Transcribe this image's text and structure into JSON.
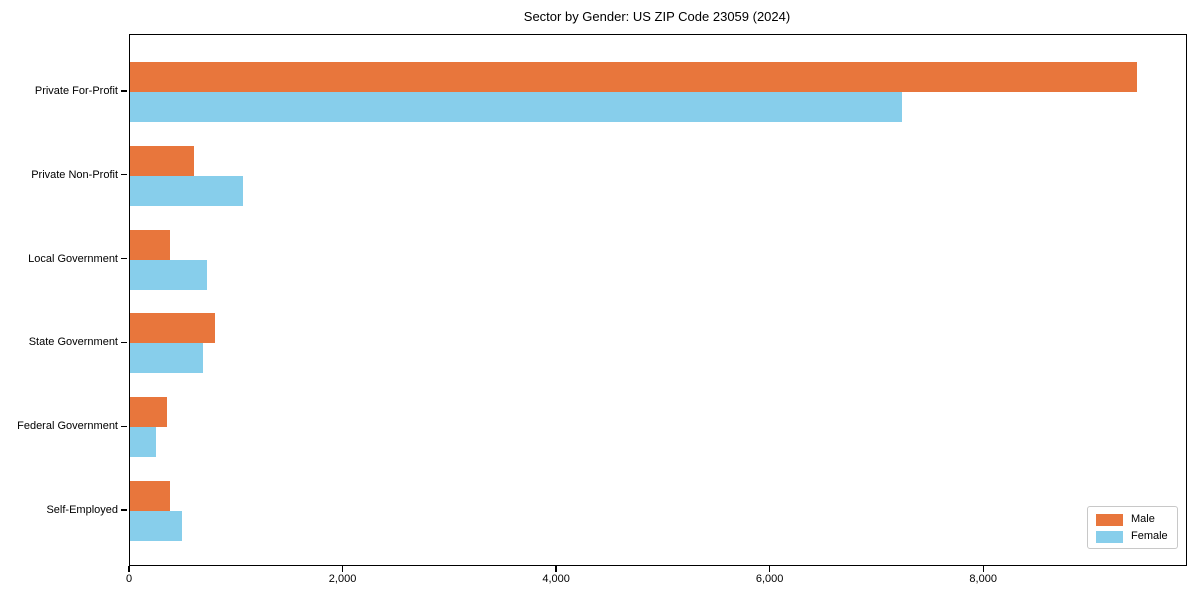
{
  "figure": {
    "title": "Sector by Gender: US ZIP Code 23059 (2024)",
    "background_color": "#ffffff",
    "spine_color": "#000000",
    "tick_color": "#000000",
    "legend_border_color": "#c8c8c8"
  },
  "chart_data": {
    "type": "bar",
    "orientation": "horizontal",
    "title": "Sector by Gender: US ZIP Code 23059 (2024)",
    "categories": [
      "Private For-Profit",
      "Private Non-Profit",
      "Local Government",
      "State Government",
      "Federal Government",
      "Self-Employed"
    ],
    "series": [
      {
        "name": "Male",
        "color": "#E8763C",
        "values": [
          9430,
          600,
          375,
          795,
          345,
          375
        ]
      },
      {
        "name": "Female",
        "color": "#87CEEB",
        "values": [
          7230,
          1060,
          720,
          685,
          245,
          490
        ]
      }
    ],
    "xlabel": "",
    "ylabel": "",
    "xlim": [
      0,
      9890
    ],
    "xticks": [
      {
        "value": 0,
        "label": "0"
      },
      {
        "value": 2000,
        "label": "2,000"
      },
      {
        "value": 4000,
        "label": "4,000"
      },
      {
        "value": 6000,
        "label": "6,000"
      },
      {
        "value": 8000,
        "label": "8,000"
      }
    ],
    "grid": false,
    "legend": {
      "position": "lower-right",
      "entries": [
        {
          "label": "Male",
          "color": "#E8763C"
        },
        {
          "label": "Female",
          "color": "#87CEEB"
        }
      ]
    }
  }
}
